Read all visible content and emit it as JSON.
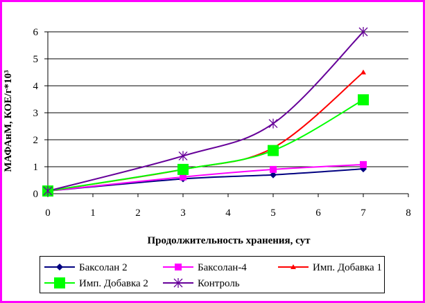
{
  "chart_data": {
    "type": "line",
    "xlabel": "Продолжительность хранения, сут",
    "ylabel": "МАФАнМ, КОЕ/г*10³",
    "xlim": [
      0,
      8
    ],
    "ylim": [
      0,
      6
    ],
    "x_ticks": [
      "0",
      "1",
      "2",
      "3",
      "4",
      "5",
      "6",
      "7",
      "8"
    ],
    "y_ticks": [
      "0",
      "1",
      "2",
      "3",
      "4",
      "5",
      "6"
    ],
    "grid": "horizontal",
    "legend_position": "bottom",
    "series": [
      {
        "name": "Баксолан 2",
        "color": "#000080",
        "marker": "diamond",
        "x": [
          0,
          3,
          5,
          7
        ],
        "y": [
          0.1,
          0.55,
          0.7,
          0.92
        ]
      },
      {
        "name": "Баксолан-4",
        "color": "#ff00ff",
        "marker": "square-small",
        "x": [
          0,
          3,
          5,
          7
        ],
        "y": [
          0.1,
          0.62,
          0.9,
          1.08
        ]
      },
      {
        "name": "Имп. Добавка 1",
        "color": "#ff0000",
        "marker": "triangle",
        "x": [
          0,
          3,
          5,
          7
        ],
        "y": [
          0.1,
          0.9,
          1.7,
          4.5
        ]
      },
      {
        "name": "Имп. Добавка 2",
        "color": "#00ff00",
        "marker": "square-large",
        "x": [
          0,
          3,
          5,
          7
        ],
        "y": [
          0.1,
          0.9,
          1.6,
          3.48
        ]
      },
      {
        "name": "Контроль",
        "color": "#660099",
        "marker": "asterisk",
        "x": [
          0,
          3,
          5,
          7
        ],
        "y": [
          0.1,
          1.4,
          2.6,
          6.0
        ]
      }
    ]
  }
}
